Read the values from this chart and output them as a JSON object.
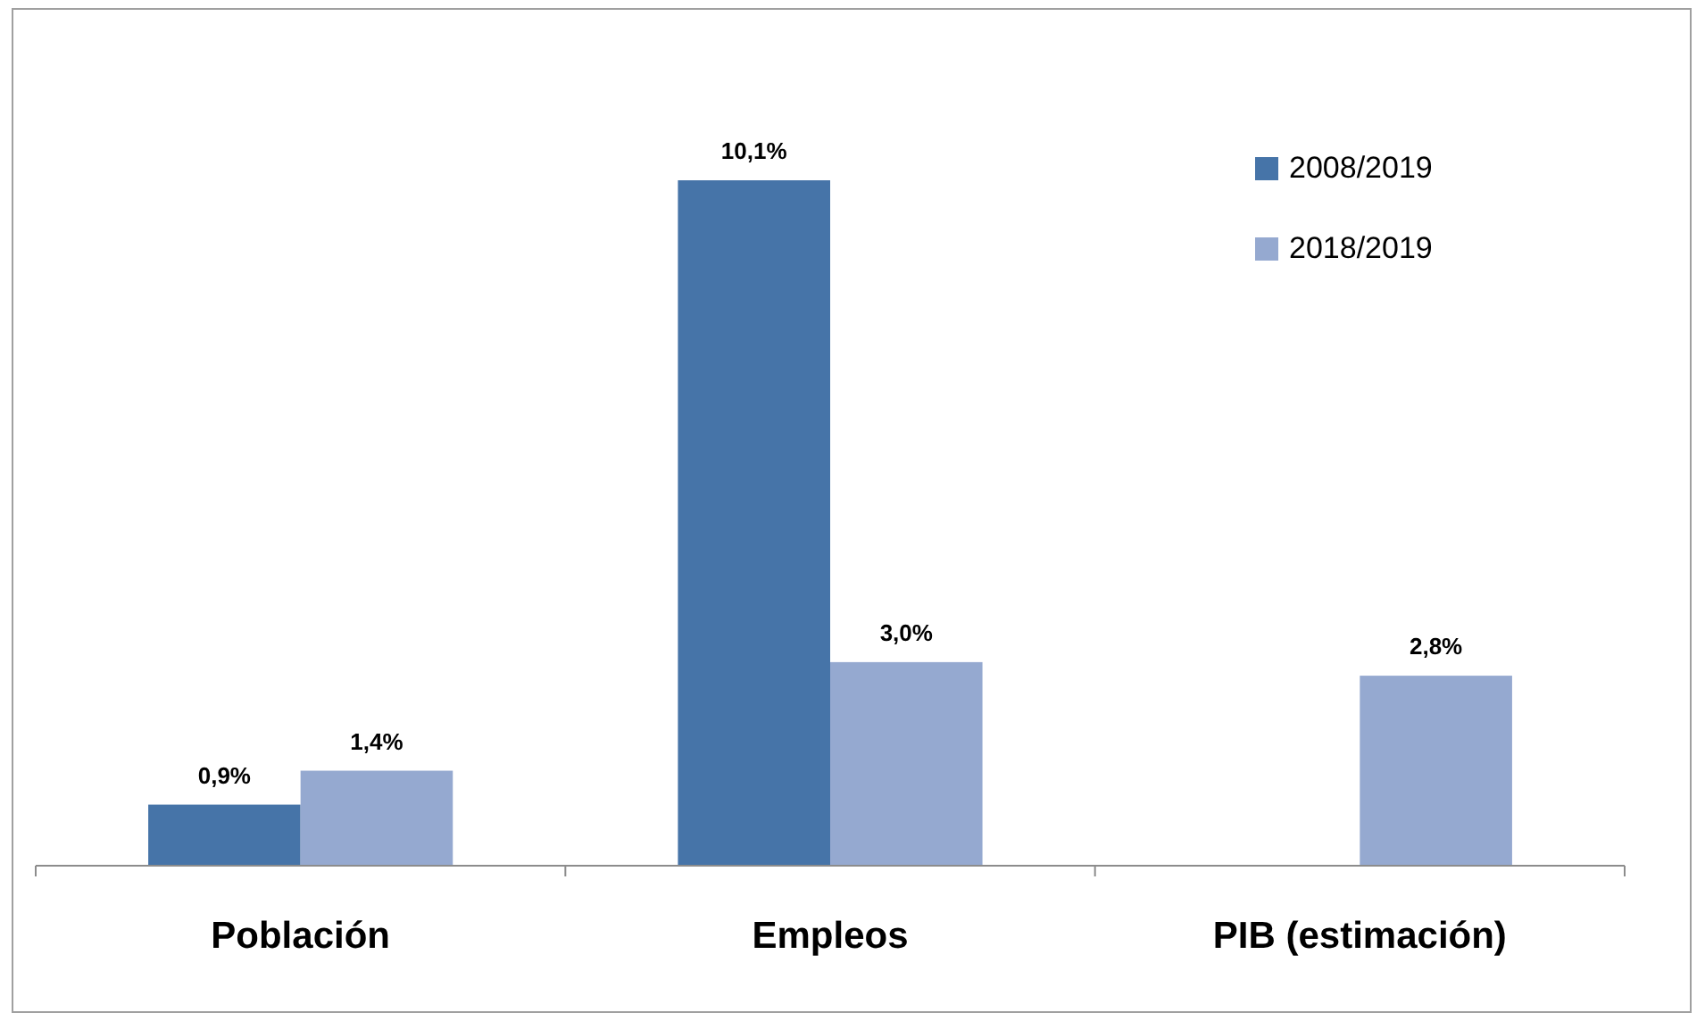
{
  "chart_data": {
    "type": "bar",
    "categories": [
      "Población",
      "Empleos",
      "PIB (estimación)"
    ],
    "series": [
      {
        "name": "2008/2019",
        "color": "#4674a8",
        "values": [
          0.9,
          10.1,
          null
        ],
        "value_labels": [
          "0,9%",
          "10,1%",
          null
        ]
      },
      {
        "name": "2018/2019",
        "color": "#95a9d0",
        "values": [
          1.4,
          3.0,
          2.8
        ],
        "value_labels": [
          "1,4%",
          "3,0%",
          "2,8%"
        ]
      }
    ],
    "legend": "top right"
  }
}
